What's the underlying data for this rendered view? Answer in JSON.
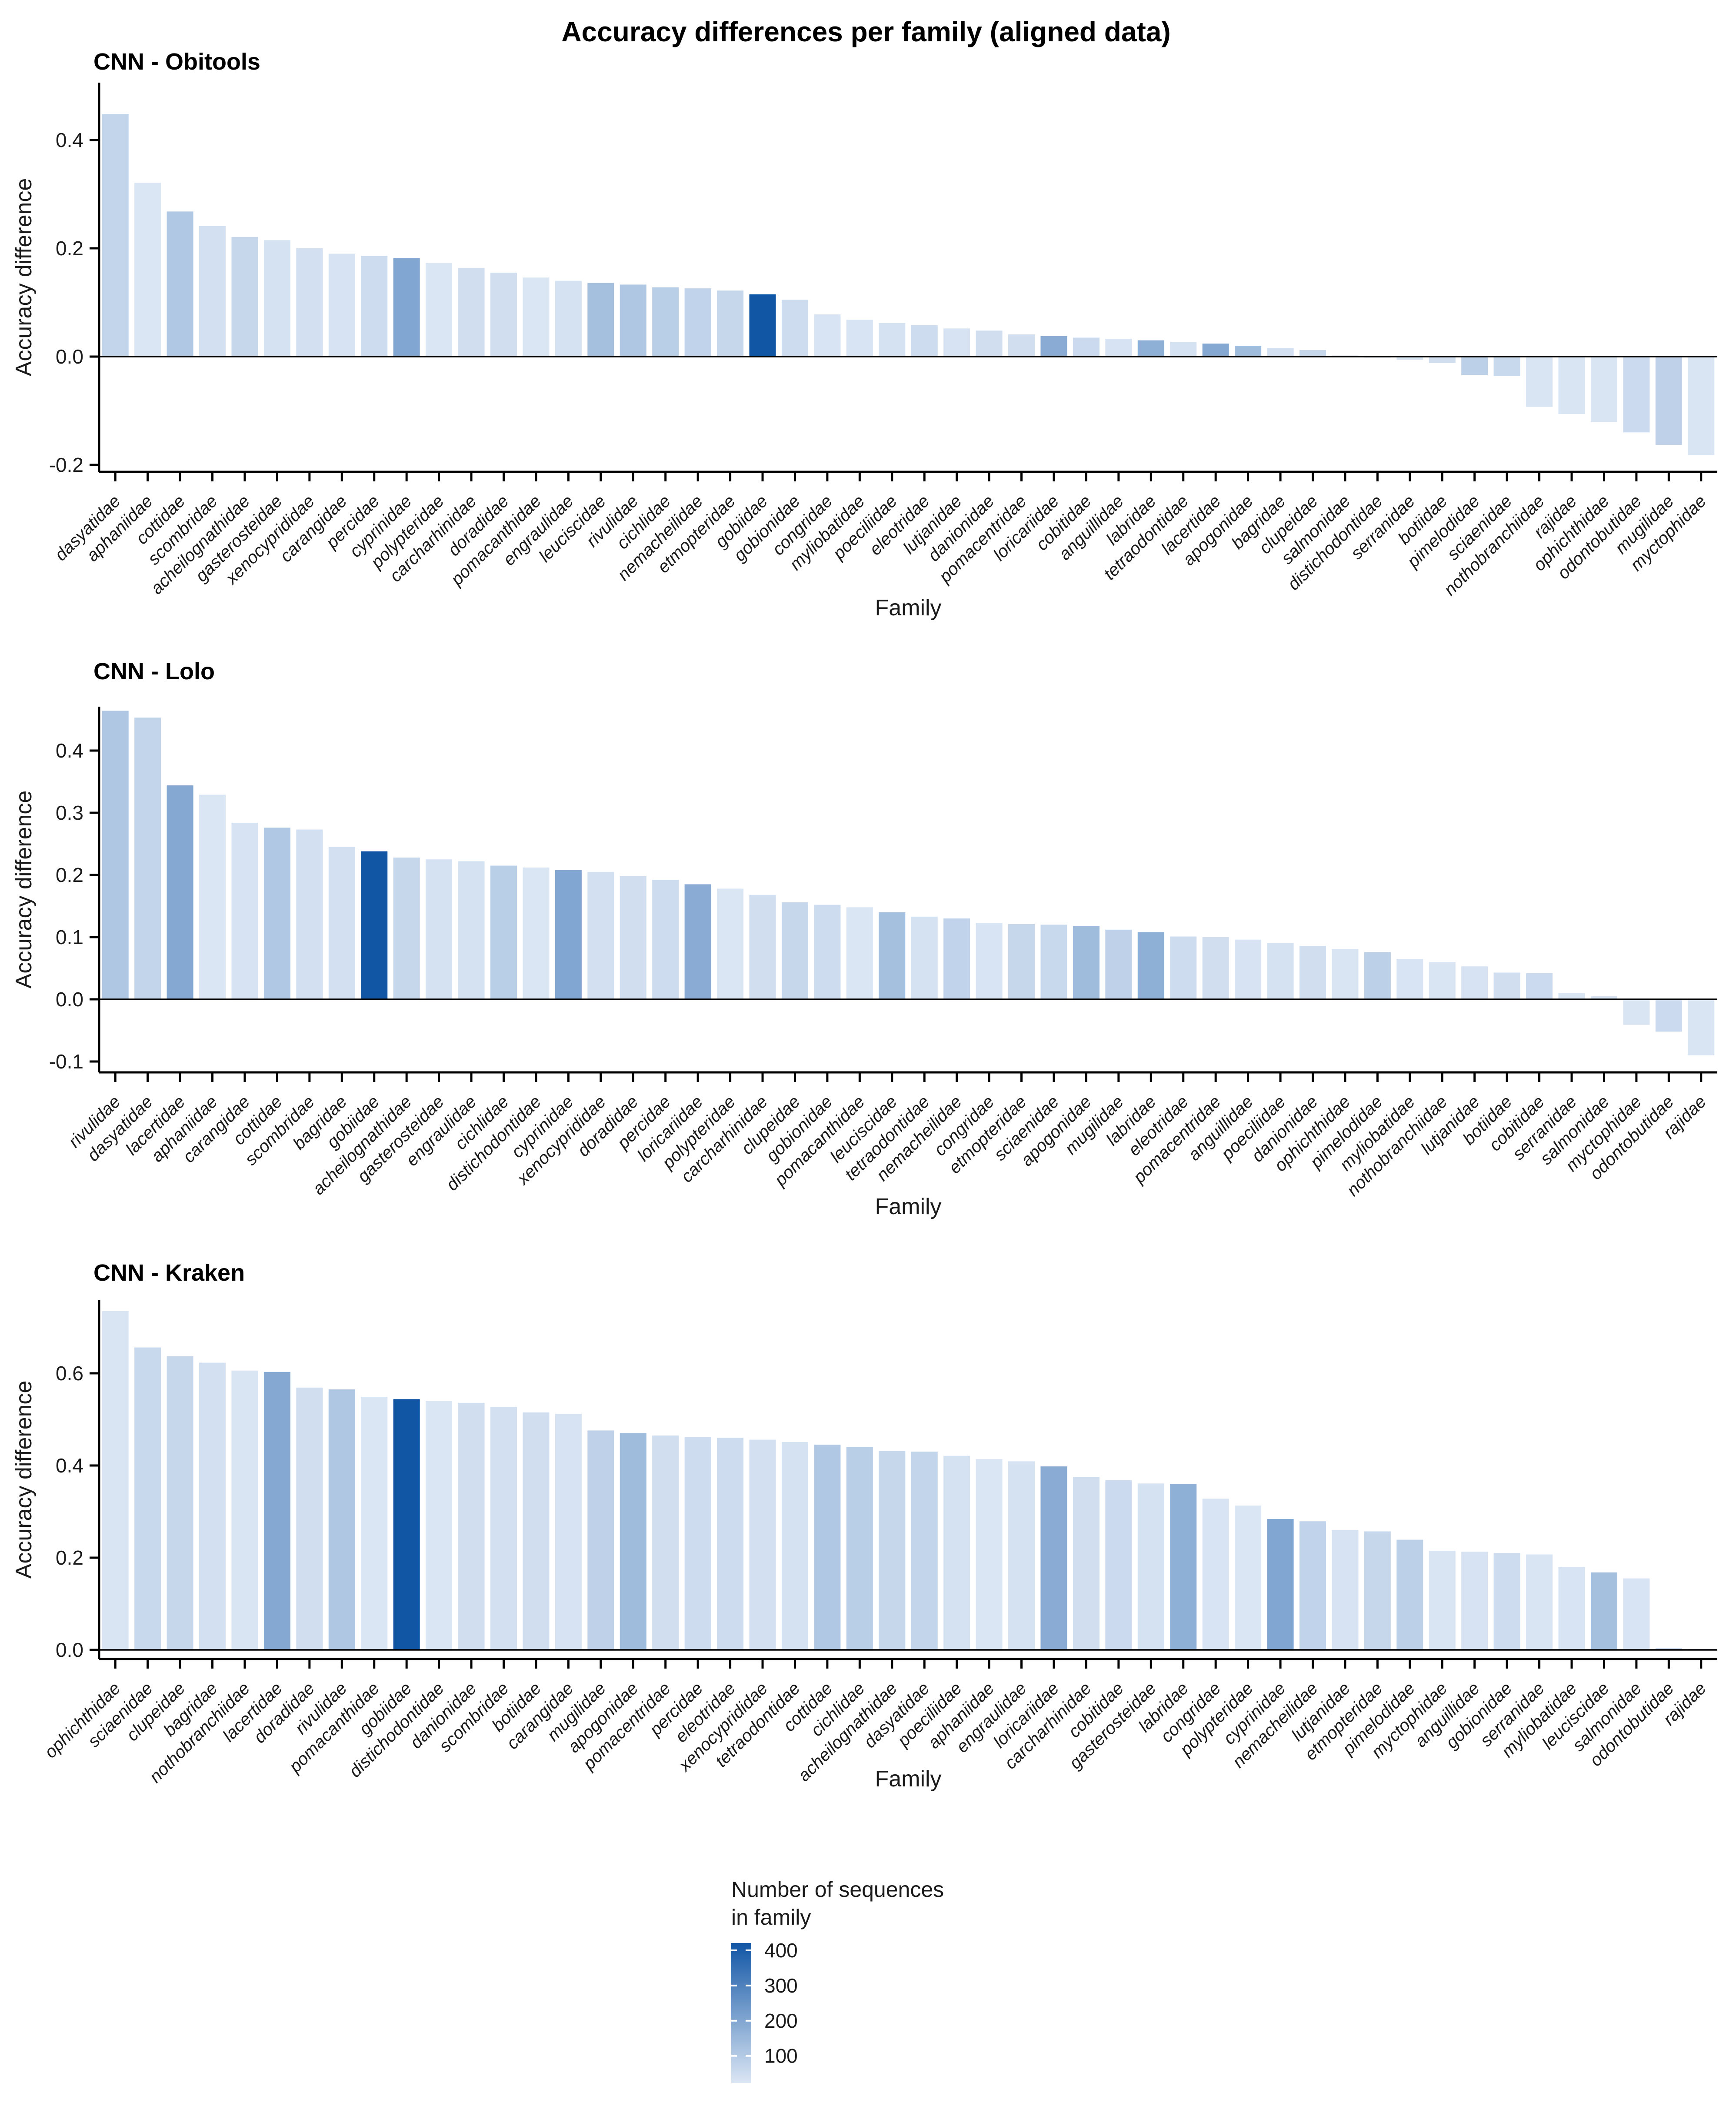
{
  "title": "Accuracy differences per family (aligned data)",
  "y_axis_label": "Accuracy difference",
  "x_axis_label": "Family",
  "colors": {
    "bar_low": "#dbe6f4",
    "bar_high": "#1156a5",
    "axis": "#000000",
    "text": "#1a1a1a",
    "background": "#ffffff"
  },
  "legend": {
    "title_line1": "Number of sequences",
    "title_line2": "in family",
    "ticks": [
      400,
      300,
      200,
      100
    ],
    "scale_domain": [
      23,
      421
    ]
  },
  "sequence_counts_estimated": {
    "gobiidae": 430,
    "cyprinidae": 200,
    "lacertidae": 195,
    "loricariidae": 185,
    "labridae": 175,
    "apogonidae": 140,
    "leuciscidae": 130,
    "rivulidae": 110,
    "cottidae": 105,
    "cichlidae": 90,
    "pimelodidae": 85,
    "mugilidae": 80,
    "nemacheilidae": 75,
    "dasyatidae": 70,
    "clupeidae": 65,
    "etmopteridae": 65,
    "acheilognathidae": 65,
    "sciaenidae": 60,
    "cobitidae": 55,
    "odontobutidae": 55,
    "gobionidae": 50,
    "percidae": 50,
    "eleotridae": 50,
    "carcharhinidae": 45,
    "doradidae": 45,
    "danionidae": 45,
    "pomacentridae": 45,
    "botiidae": 45,
    "scombridae": 40,
    "xenocyprididae": 40,
    "bagridae": 40,
    "engraulidae": 35,
    "gasterosteidae": 35,
    "poeciliidae": 35,
    "tetraodontidae": 35,
    "carangidae": 30,
    "anguillidae": 30,
    "lutjanidae": 30,
    "myliobatidae": 28,
    "congridae": 28,
    "salmonidae": 28,
    "serranidae": 25,
    "nothobranchiidae": 25,
    "ophichthidae": 25,
    "rajidae": 25,
    "myctophidae": 25,
    "pomacanthidae": 24,
    "distichodontidae": 24,
    "aphaniidae": 23,
    "polypteridae": 23
  },
  "chart_data": [
    {
      "type": "bar",
      "title": "CNN - Obitools",
      "xlabel": "Family",
      "ylabel": "Accuracy difference",
      "ylim": [
        -0.213,
        0.506
      ],
      "yticks": [
        -0.2,
        0.0,
        0.2,
        0.4
      ],
      "grid": false,
      "categories": [
        "dasyatidae",
        "aphaniidae",
        "cottidae",
        "scombridae",
        "acheilognathidae",
        "gasterosteidae",
        "xenocyprididae",
        "carangidae",
        "percidae",
        "cyprinidae",
        "polypteridae",
        "carcharhinidae",
        "doradidae",
        "pomacanthidae",
        "engraulidae",
        "leuciscidae",
        "rivulidae",
        "cichlidae",
        "nemacheilidae",
        "etmopteridae",
        "gobiidae",
        "gobionidae",
        "congridae",
        "myliobatidae",
        "poeciliidae",
        "eleotridae",
        "lutjanidae",
        "danionidae",
        "pomacentridae",
        "loricariidae",
        "cobitidae",
        "anguillidae",
        "labridae",
        "tetraodontidae",
        "lacertidae",
        "apogonidae",
        "bagridae",
        "clupeidae",
        "salmonidae",
        "distichodontidae",
        "serranidae",
        "botiidae",
        "pimelodidae",
        "sciaenidae",
        "nothobranchiidae",
        "rajidae",
        "ophichthidae",
        "odontobutidae",
        "mugilidae",
        "myctophidae"
      ],
      "values": [
        0.448,
        0.321,
        0.268,
        0.241,
        0.221,
        0.215,
        0.2,
        0.19,
        0.186,
        0.182,
        0.173,
        0.164,
        0.155,
        0.146,
        0.14,
        0.136,
        0.133,
        0.128,
        0.126,
        0.122,
        0.115,
        0.105,
        0.078,
        0.068,
        0.062,
        0.058,
        0.052,
        0.048,
        0.041,
        0.038,
        0.035,
        0.033,
        0.03,
        0.027,
        0.024,
        0.02,
        0.016,
        0.012,
        0.002,
        -0.002,
        -0.006,
        -0.012,
        -0.034,
        -0.036,
        -0.093,
        -0.106,
        -0.121,
        -0.14,
        -0.163,
        -0.182
      ]
    },
    {
      "type": "bar",
      "title": "CNN - Lolo",
      "xlabel": "Family",
      "ylabel": "Accuracy difference",
      "ylim": [
        -0.117,
        0.472
      ],
      "yticks": [
        -0.1,
        0.0,
        0.1,
        0.2,
        0.3,
        0.4
      ],
      "grid": false,
      "categories": [
        "rivulidae",
        "dasyatidae",
        "lacertidae",
        "aphaniidae",
        "carangidae",
        "cottidae",
        "scombridae",
        "bagridae",
        "gobiidae",
        "acheilognathidae",
        "gasterosteidae",
        "engraulidae",
        "cichlidae",
        "distichodontidae",
        "cyprinidae",
        "xenocyprididae",
        "doradidae",
        "percidae",
        "loricariidae",
        "polypteridae",
        "carcharhinidae",
        "clupeidae",
        "gobionidae",
        "pomacanthidae",
        "leuciscidae",
        "tetraodontidae",
        "nemacheilidae",
        "congridae",
        "etmopteridae",
        "sciaenidae",
        "apogonidae",
        "mugilidae",
        "labridae",
        "eleotridae",
        "pomacentridae",
        "anguillidae",
        "poeciliidae",
        "danionidae",
        "ophichthidae",
        "pimelodidae",
        "myliobatidae",
        "nothobranchiidae",
        "lutjanidae",
        "botiidae",
        "cobitidae",
        "serranidae",
        "salmonidae",
        "myctophidae",
        "odontobutidae",
        "rajidae"
      ],
      "values": [
        0.464,
        0.453,
        0.344,
        0.329,
        0.284,
        0.276,
        0.273,
        0.245,
        0.238,
        0.228,
        0.225,
        0.222,
        0.215,
        0.212,
        0.208,
        0.205,
        0.198,
        0.192,
        0.185,
        0.178,
        0.168,
        0.156,
        0.152,
        0.148,
        0.14,
        0.133,
        0.13,
        0.123,
        0.121,
        0.12,
        0.118,
        0.112,
        0.108,
        0.101,
        0.1,
        0.096,
        0.091,
        0.086,
        0.081,
        0.076,
        0.065,
        0.06,
        0.053,
        0.043,
        0.042,
        0.01,
        0.005,
        -0.041,
        -0.052,
        -0.09
      ]
    },
    {
      "type": "bar",
      "title": "CNN - Kraken",
      "xlabel": "Family",
      "ylabel": "Accuracy difference",
      "ylim": [
        -0.02,
        0.758
      ],
      "yticks": [
        0.0,
        0.2,
        0.4,
        0.6
      ],
      "grid": false,
      "categories": [
        "ophichthidae",
        "sciaenidae",
        "clupeidae",
        "bagridae",
        "nothobranchiidae",
        "lacertidae",
        "doradidae",
        "rivulidae",
        "pomacanthidae",
        "gobiidae",
        "distichodontidae",
        "danionidae",
        "scombridae",
        "botiidae",
        "carangidae",
        "mugilidae",
        "apogonidae",
        "pomacentridae",
        "percidae",
        "eleotridae",
        "xenocyprididae",
        "tetraodontidae",
        "cottidae",
        "cichlidae",
        "acheilognathidae",
        "dasyatidae",
        "poeciliidae",
        "aphaniidae",
        "engraulidae",
        "loricariidae",
        "carcharhinidae",
        "cobitidae",
        "gasterosteidae",
        "labridae",
        "congridae",
        "polypteridae",
        "cyprinidae",
        "nemacheilidae",
        "lutjanidae",
        "etmopteridae",
        "pimelodidae",
        "myctophidae",
        "anguillidae",
        "gobionidae",
        "serranidae",
        "myliobatidae",
        "leuciscidae",
        "salmonidae",
        "odontobutidae",
        "rajidae"
      ],
      "values": [
        0.735,
        0.656,
        0.637,
        0.623,
        0.606,
        0.603,
        0.569,
        0.565,
        0.549,
        0.544,
        0.54,
        0.536,
        0.527,
        0.515,
        0.512,
        0.476,
        0.47,
        0.465,
        0.462,
        0.46,
        0.456,
        0.451,
        0.445,
        0.44,
        0.432,
        0.43,
        0.421,
        0.414,
        0.409,
        0.398,
        0.375,
        0.368,
        0.361,
        0.36,
        0.328,
        0.313,
        0.284,
        0.279,
        0.26,
        0.257,
        0.239,
        0.215,
        0.213,
        0.21,
        0.207,
        0.18,
        0.168,
        0.155,
        0.004,
        0.002
      ]
    }
  ]
}
